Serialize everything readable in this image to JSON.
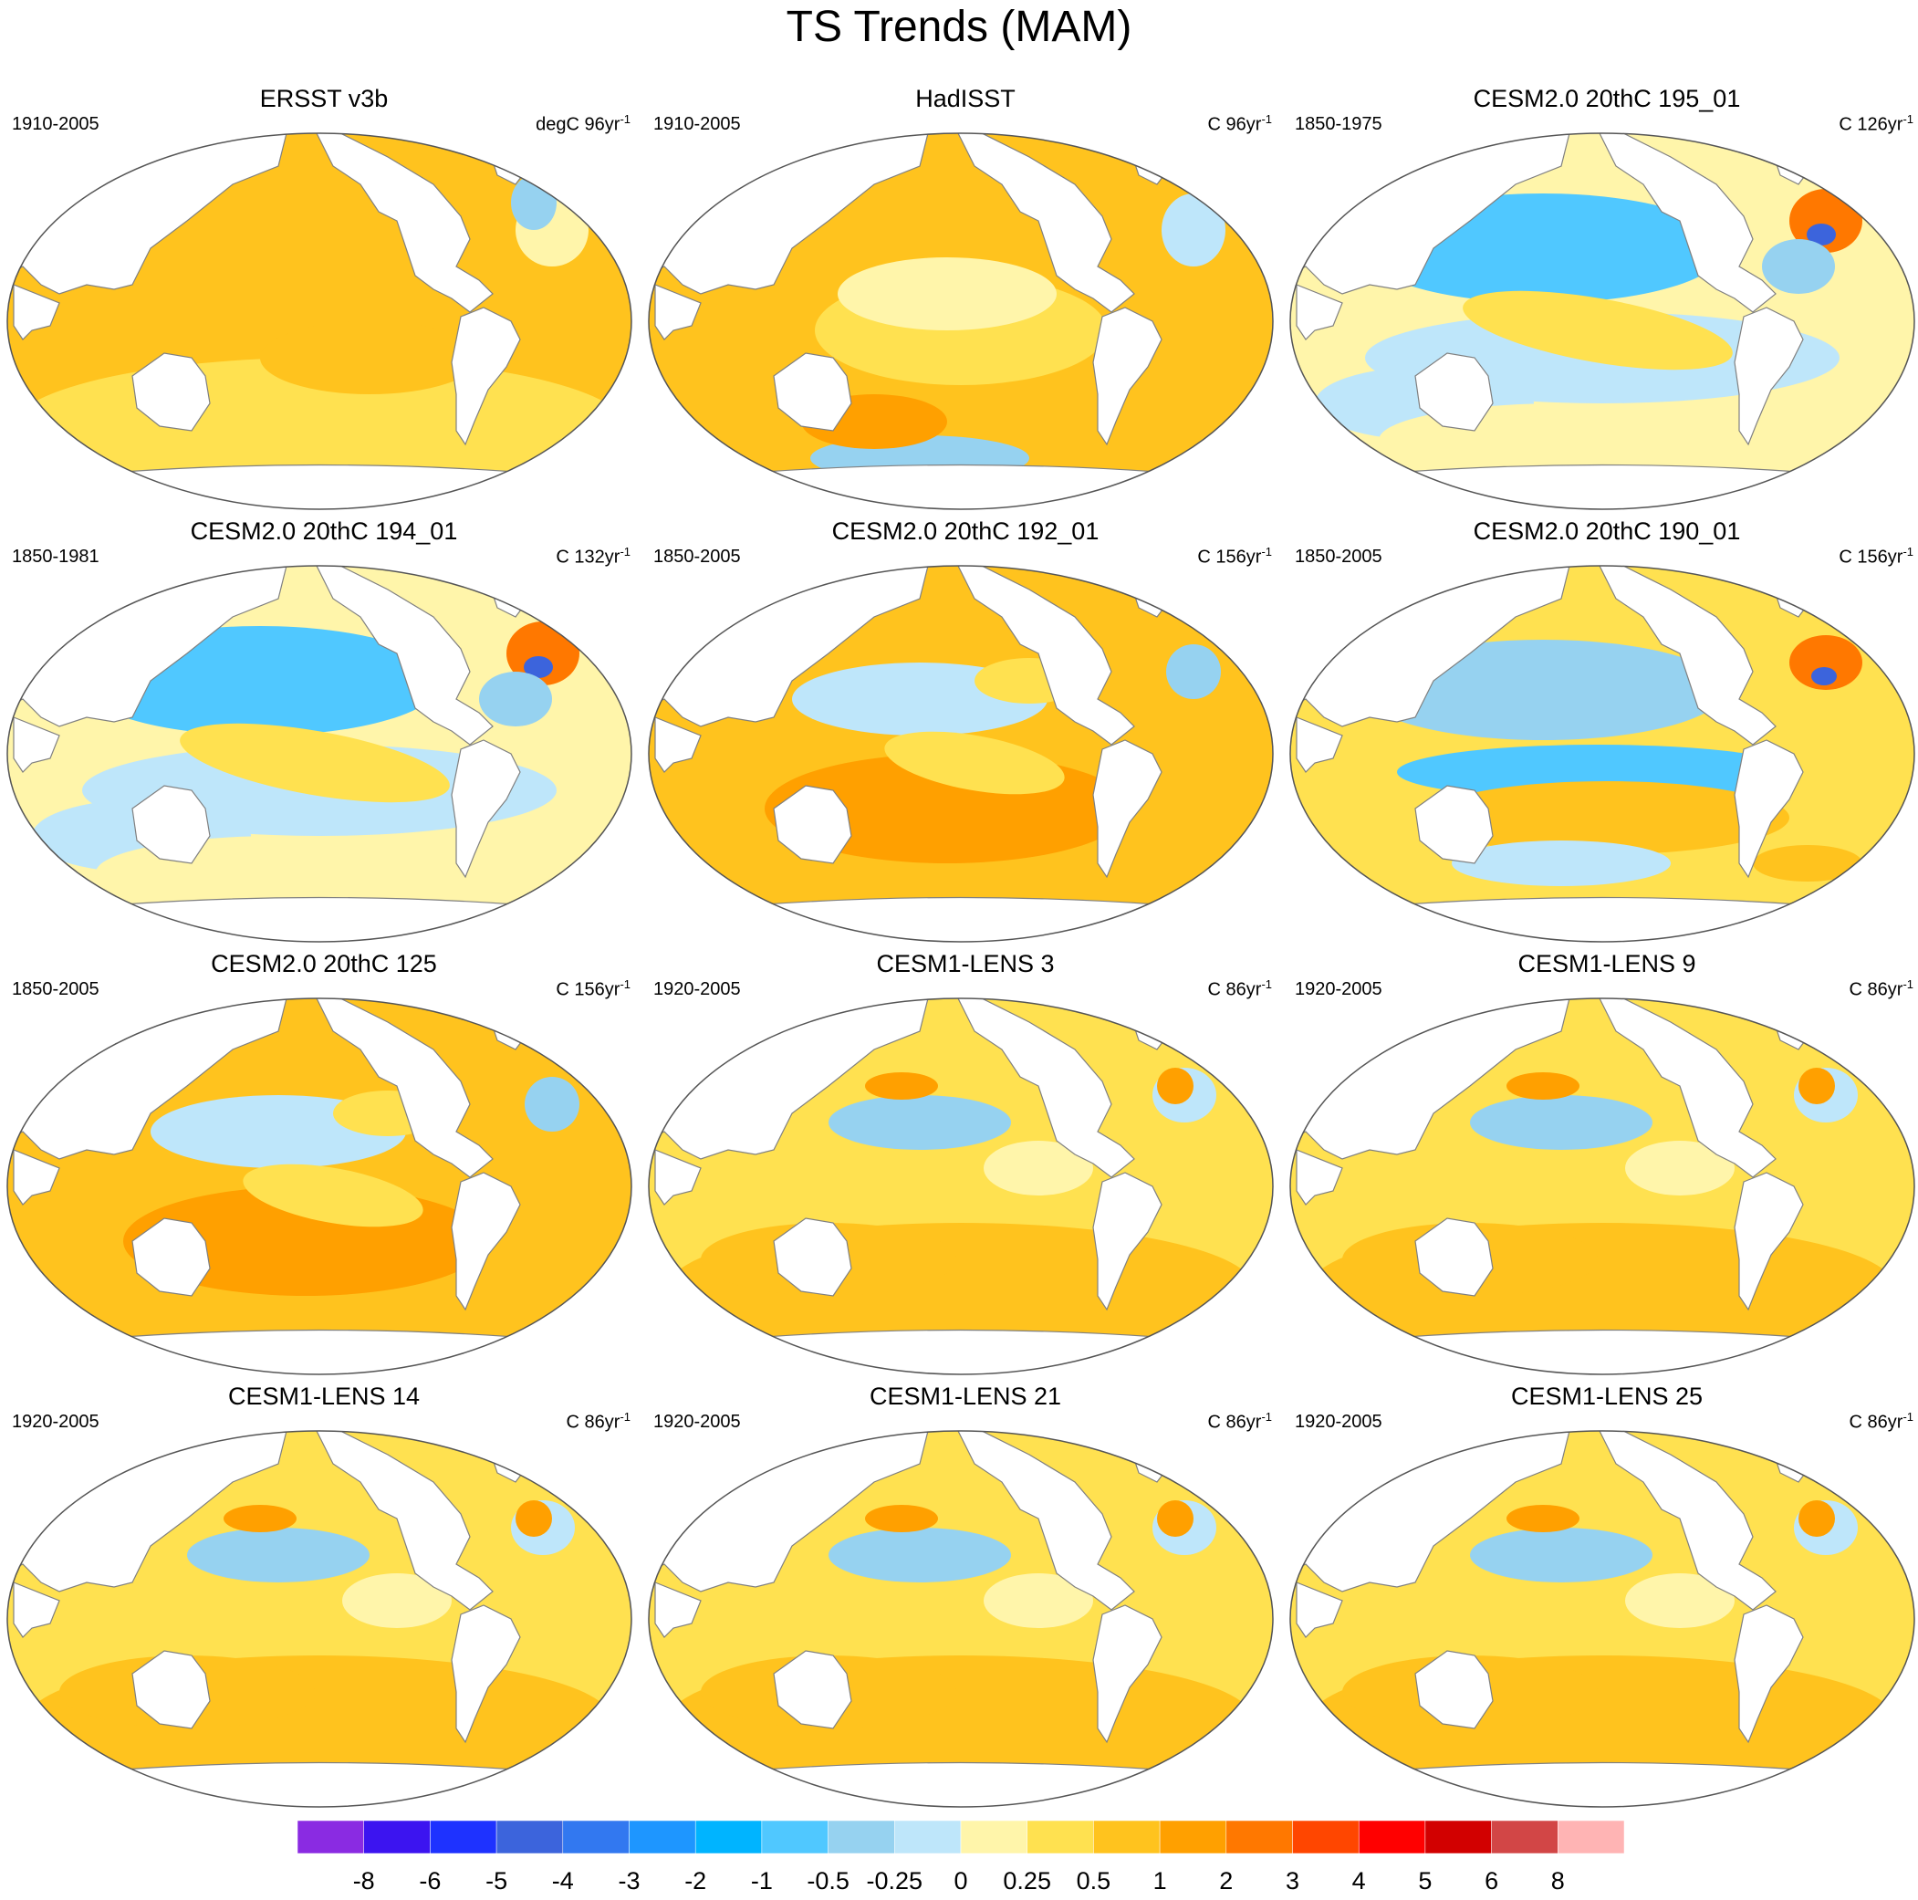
{
  "title": "TS Trends (MAM)",
  "panels": [
    {
      "title": "ERSST v3b",
      "period": "1910-2005",
      "units": "degC 96yr",
      "sup": "-1",
      "pattern": "obs1"
    },
    {
      "title": "HadISST",
      "period": "1910-2005",
      "units": "C 96yr",
      "sup": "-1",
      "pattern": "obs2"
    },
    {
      "title": "CESM2.0 20thC 195_01",
      "period": "1850-1975",
      "units": "C 126yr",
      "sup": "-1",
      "pattern": "cool"
    },
    {
      "title": "CESM2.0 20thC 194_01",
      "period": "1850-1981",
      "units": "C 132yr",
      "sup": "-1",
      "pattern": "cool"
    },
    {
      "title": "CESM2.0 20thC 192_01",
      "period": "1850-2005",
      "units": "C 156yr",
      "sup": "-1",
      "pattern": "warm"
    },
    {
      "title": "CESM2.0 20thC 190_01",
      "period": "1850-2005",
      "units": "C 156yr",
      "sup": "-1",
      "pattern": "mixed"
    },
    {
      "title": "CESM2.0 20thC 125",
      "period": "1850-2005",
      "units": "C 156yr",
      "sup": "-1",
      "pattern": "warm"
    },
    {
      "title": "CESM1-LENS 3",
      "period": "1920-2005",
      "units": "C 86yr",
      "sup": "-1",
      "pattern": "lens"
    },
    {
      "title": "CESM1-LENS 9",
      "period": "1920-2005",
      "units": "C 86yr",
      "sup": "-1",
      "pattern": "lens"
    },
    {
      "title": "CESM1-LENS 14",
      "period": "1920-2005",
      "units": "C 86yr",
      "sup": "-1",
      "pattern": "lens"
    },
    {
      "title": "CESM1-LENS 21",
      "period": "1920-2005",
      "units": "C 86yr",
      "sup": "-1",
      "pattern": "lens"
    },
    {
      "title": "CESM1-LENS 25",
      "period": "1920-2005",
      "units": "C 86yr",
      "sup": "-1",
      "pattern": "lens"
    }
  ],
  "colorbar": {
    "labels": [
      "-8",
      "-6",
      "-5",
      "-4",
      "-3",
      "-2",
      "-1",
      "-0.5",
      "-0.25",
      "0",
      "0.25",
      "0.5",
      "1",
      "2",
      "3",
      "4",
      "5",
      "6",
      "8"
    ],
    "colors": [
      "#8a2be2",
      "#3c14f0",
      "#1e32ff",
      "#3c64dc",
      "#3278f0",
      "#1e96ff",
      "#00b4ff",
      "#50c8ff",
      "#96d2f0",
      "#bee6fa",
      "#fff5aa",
      "#ffe150",
      "#ffc31e",
      "#ffa000",
      "#ff7800",
      "#ff4600",
      "#ff0000",
      "#d20000",
      "#d24646",
      "#ffb4b4"
    ]
  }
}
